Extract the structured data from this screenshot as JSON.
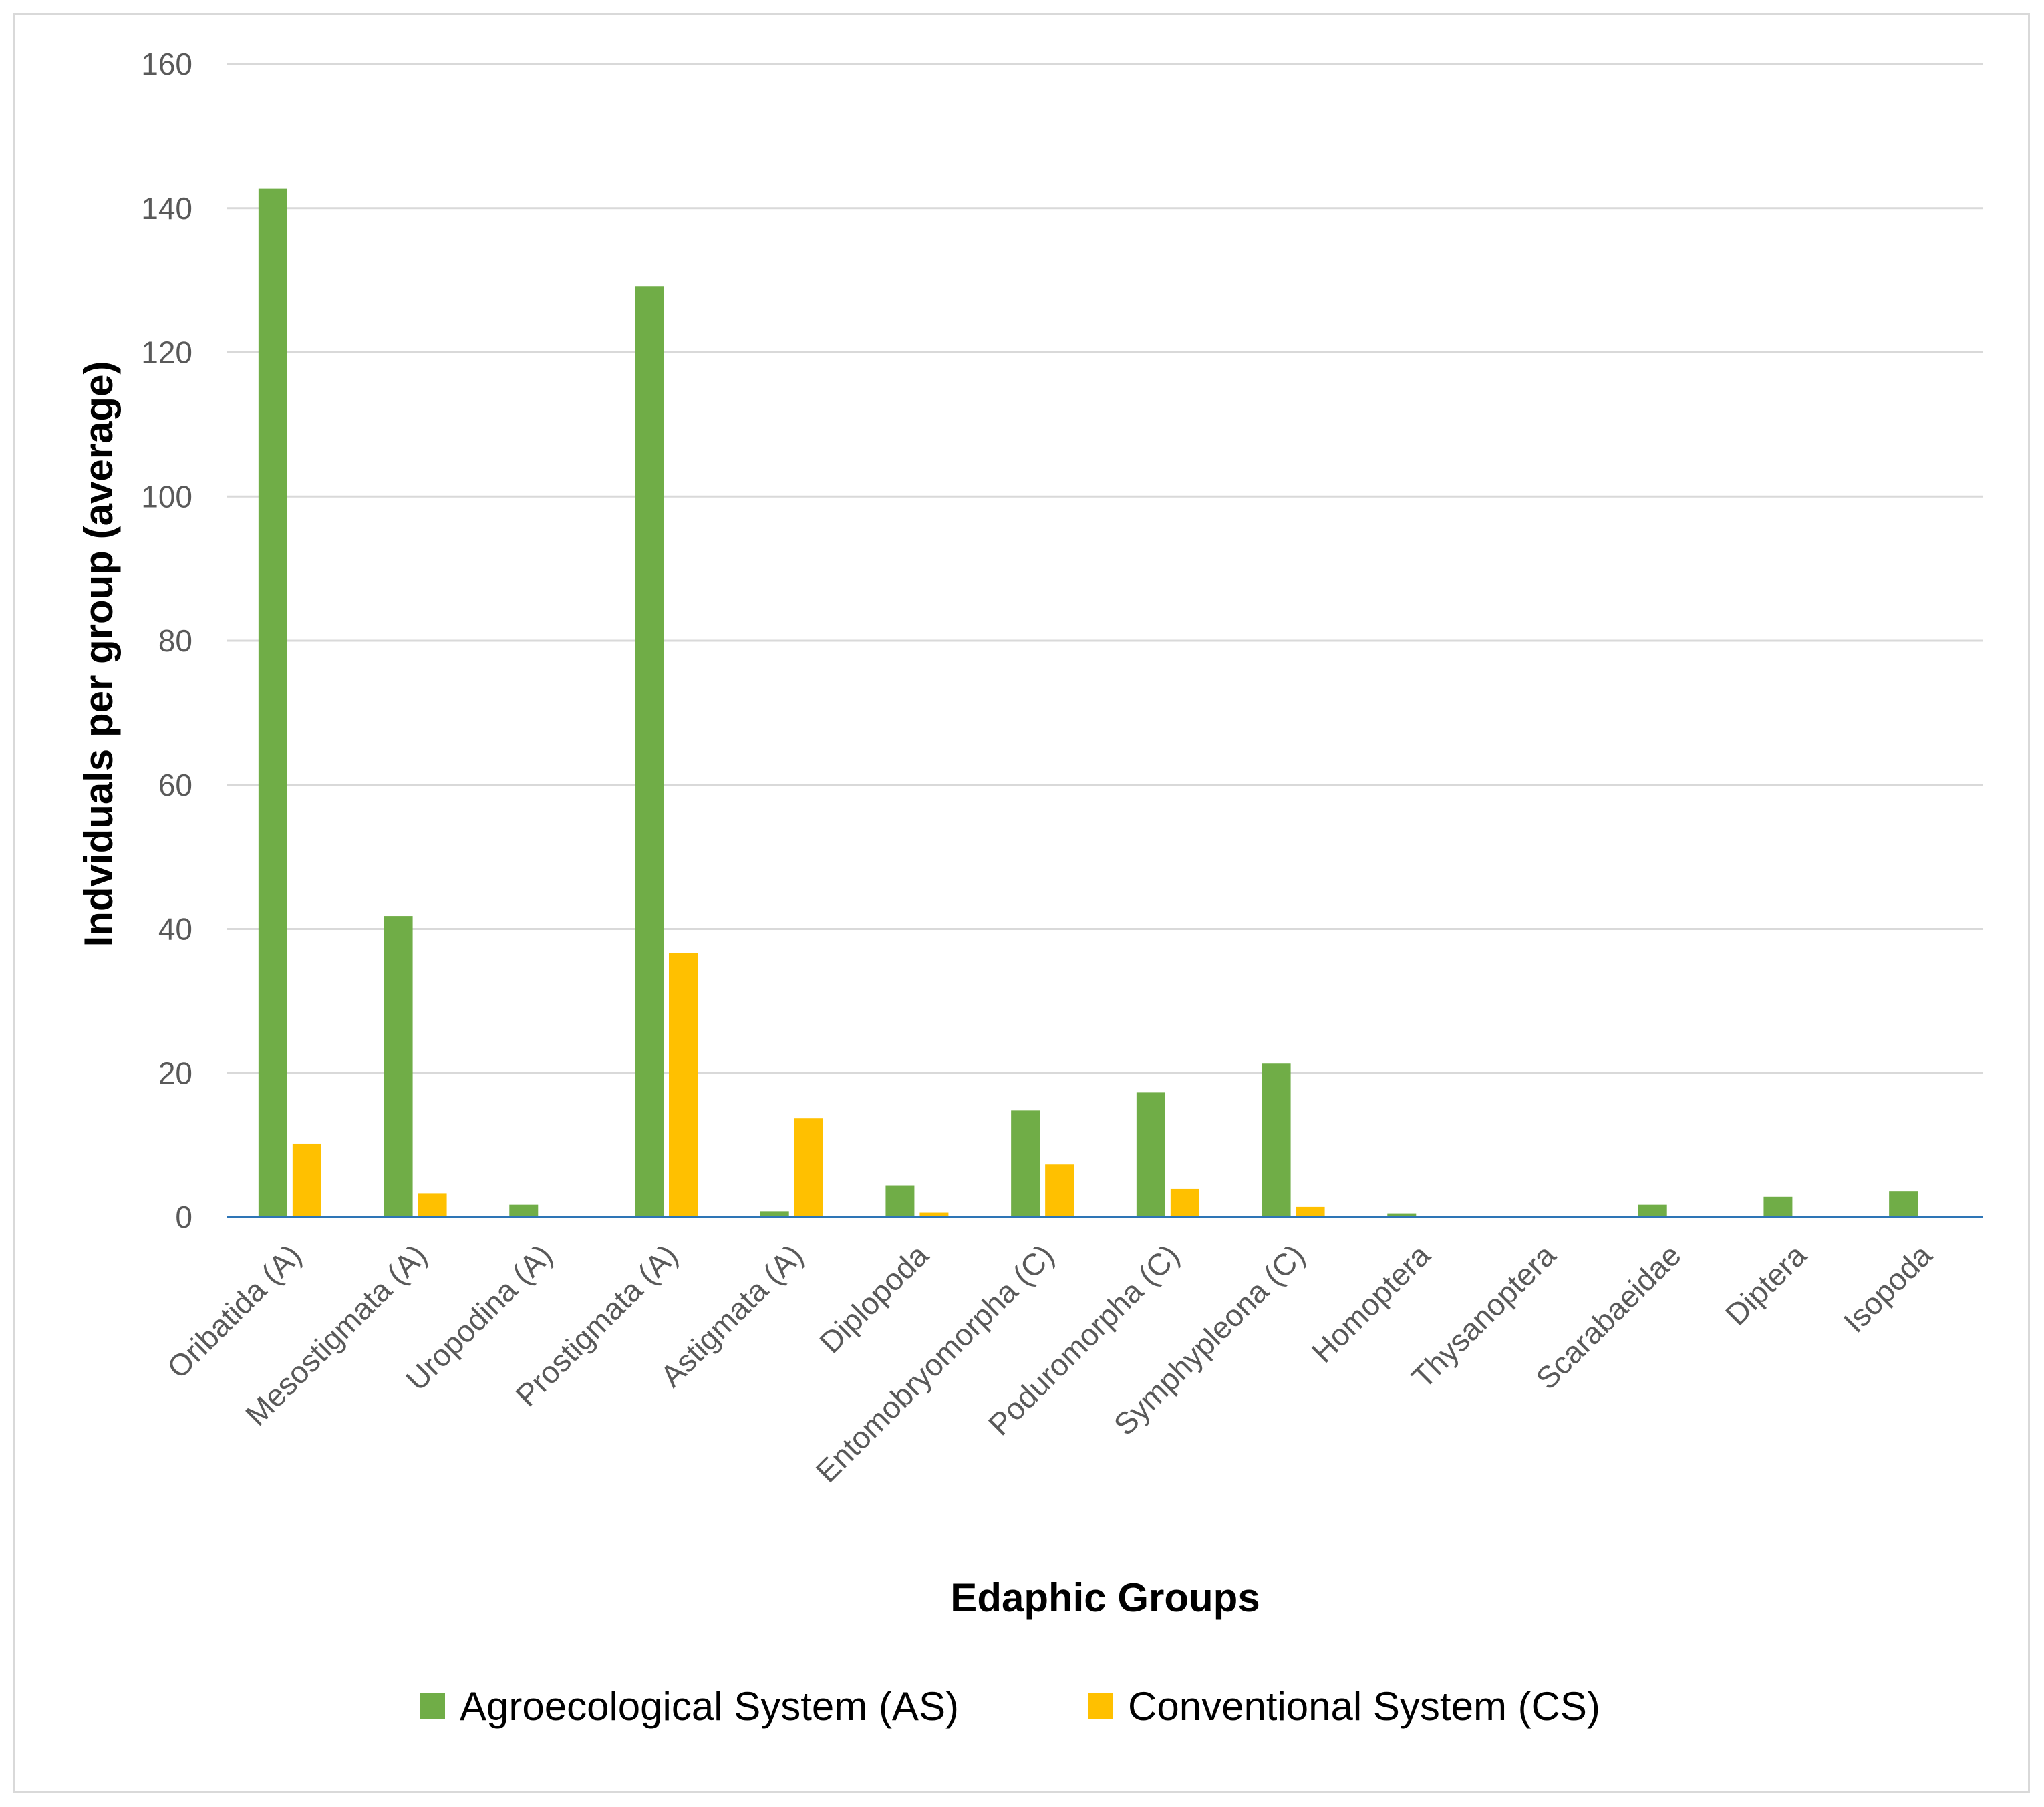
{
  "chart_data": {
    "type": "bar",
    "title": "",
    "xlabel": "Edaphic Groups",
    "ylabel": "Indviduals per group (average)",
    "ylim": [
      0,
      160
    ],
    "yticks": [
      0,
      20,
      40,
      60,
      80,
      100,
      120,
      140,
      160
    ],
    "grid": true,
    "legend_position": "bottom",
    "categories": [
      "Oribatida (A)",
      "Mesostigmata (A)",
      "Uropodina (A)",
      "Prostigmata (A)",
      "Astigmata (A)",
      "Diplopoda",
      "Entomobryomorpha (C)",
      "Poduromorpha (C)",
      "Symphypleona (C)",
      "Homoptera",
      "Thysanoptera",
      "Scarabaeidae",
      "Diptera",
      "Isopoda"
    ],
    "series": [
      {
        "name": "Agroecological System (AS)",
        "color": "#70ad47",
        "values": [
          142.7,
          41.8,
          1.7,
          129.2,
          0.8,
          4.4,
          14.8,
          17.3,
          21.3,
          0.5,
          0,
          1.7,
          2.8,
          3.6
        ]
      },
      {
        "name": "Conventional System (CS)",
        "color": "#ffc000",
        "values": [
          10.2,
          3.3,
          0,
          36.7,
          13.7,
          0.6,
          7.3,
          3.9,
          1.4,
          0,
          0,
          0,
          0,
          0
        ]
      }
    ],
    "gridline_color": "#d9d9d9",
    "baseline_color": "#2e75b6"
  }
}
